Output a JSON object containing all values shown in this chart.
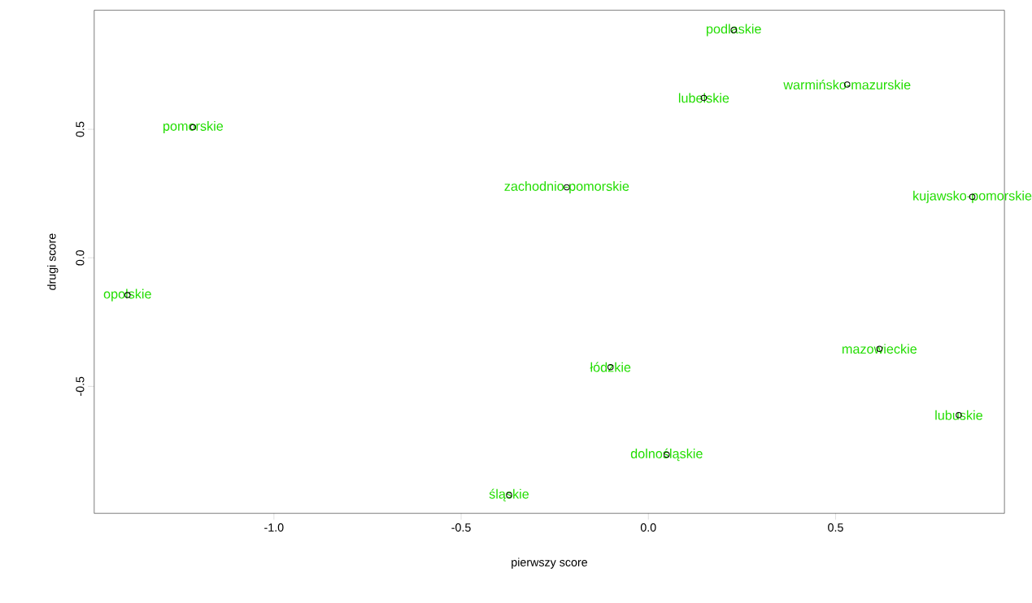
{
  "chart_data": {
    "type": "scatter",
    "xlabel": "pierwszy score",
    "ylabel": "drugi score",
    "marker": "circle",
    "series": [
      {
        "color": "#000000",
        "x": [
          0.228,
          0.531,
          0.148,
          -1.216,
          -0.218,
          0.865,
          -1.391,
          0.617,
          -0.101,
          0.829,
          0.049,
          -0.372
        ],
        "values": [
          0.886,
          0.674,
          0.622,
          0.508,
          0.274,
          0.237,
          -0.145,
          -0.354,
          -0.425,
          -0.612,
          -0.766,
          -0.923
        ]
      }
    ],
    "annotations": [
      {
        "text": "podlaskie",
        "x": 0.228,
        "y": 0.886
      },
      {
        "text": "warmińsko-mazurskie",
        "x": 0.531,
        "y": 0.674
      },
      {
        "text": "lubelskie",
        "x": 0.148,
        "y": 0.622
      },
      {
        "text": "pomorskie",
        "x": -1.216,
        "y": 0.508
      },
      {
        "text": "zachodnio-pomorskie",
        "x": -0.218,
        "y": 0.274
      },
      {
        "text": "kujawsko-pomorskie",
        "x": 0.865,
        "y": 0.237
      },
      {
        "text": "opolskie",
        "x": -1.391,
        "y": -0.145
      },
      {
        "text": "mazowieckie",
        "x": 0.617,
        "y": -0.354
      },
      {
        "text": "łódzkie",
        "x": -0.101,
        "y": -0.425
      },
      {
        "text": "lubuskie",
        "x": 0.829,
        "y": -0.612
      },
      {
        "text": "dolnośląskie",
        "x": 0.049,
        "y": -0.766
      },
      {
        "text": "śląskie",
        "x": -0.372,
        "y": -0.923
      }
    ],
    "xlim": [
      -1.48,
      0.951
    ],
    "ylim": [
      -0.994,
      0.963
    ],
    "xticks": [
      {
        "value": -1,
        "label": "-1.0"
      },
      {
        "value": -0.5,
        "label": "-0.5"
      },
      {
        "value": 0,
        "label": "0.0"
      },
      {
        "value": 0.5,
        "label": "0.5"
      }
    ],
    "yticks": [
      {
        "value": -0.5,
        "label": "-0.5"
      },
      {
        "value": 0,
        "label": "0.0"
      },
      {
        "value": 0.5,
        "label": "0.5"
      }
    ]
  }
}
